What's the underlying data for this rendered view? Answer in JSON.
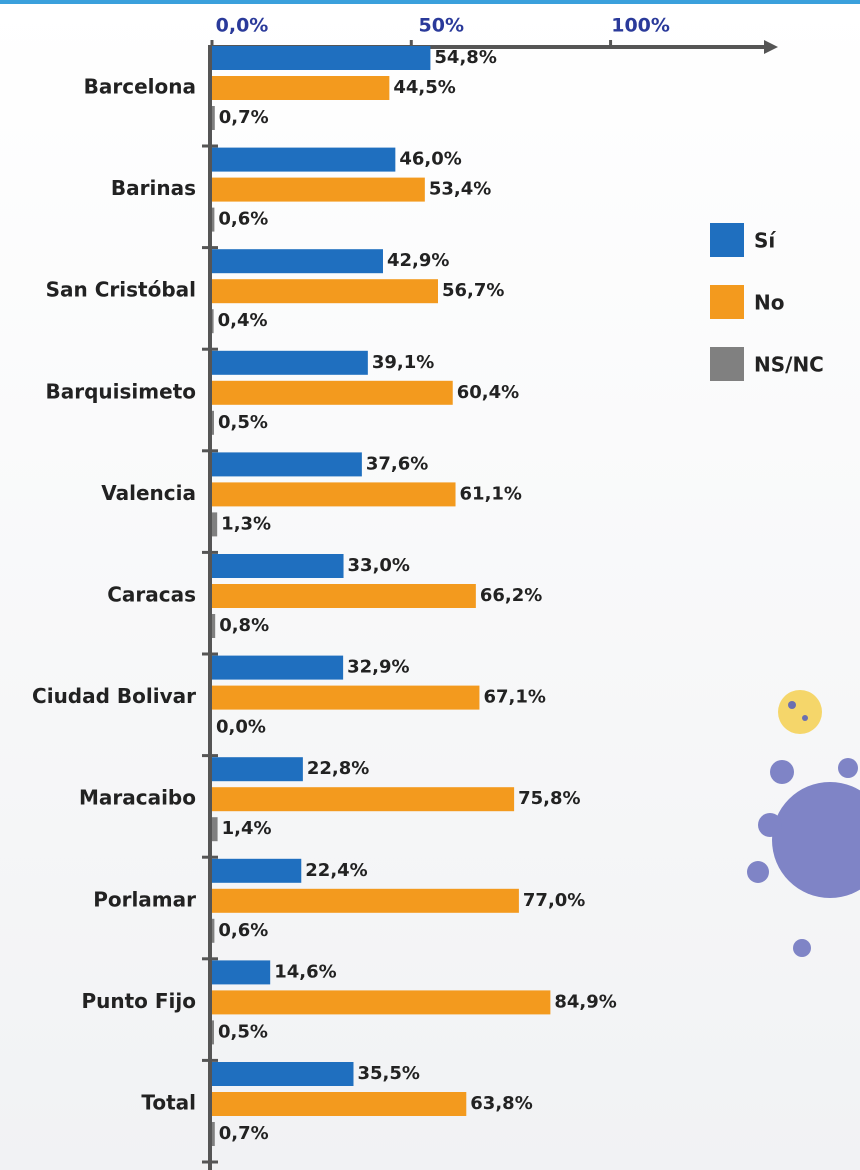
{
  "chart_data": {
    "type": "barh",
    "categories": [
      "Barcelona",
      "Barinas",
      "San Cristóbal",
      "Barquisimeto",
      "Valencia",
      "Caracas",
      "Ciudad Bolivar",
      "Maracaibo",
      "Porlamar",
      "Punto Fijo",
      "Total"
    ],
    "series": [
      {
        "name": "Sí",
        "color": "#1f6fbf",
        "values": [
          54.8,
          46.0,
          42.9,
          39.1,
          37.6,
          33.0,
          32.9,
          22.8,
          22.4,
          14.6,
          35.5
        ],
        "value_labels": [
          "54,8%",
          "46,0%",
          "42,9%",
          "39,1%",
          "37,6%",
          "33,0%",
          "32,9%",
          "22,8%",
          "22,4%",
          "14,6%",
          "35,5%"
        ]
      },
      {
        "name": "No",
        "color": "#f39a1e",
        "values": [
          44.5,
          53.4,
          56.7,
          60.4,
          61.1,
          66.2,
          67.1,
          75.8,
          77.0,
          84.9,
          63.8
        ],
        "value_labels": [
          "44,5%",
          "53,4%",
          "56,7%",
          "60,4%",
          "61,1%",
          "66,2%",
          "67,1%",
          "75,8%",
          "77,0%",
          "84,9%",
          "63,8%"
        ]
      },
      {
        "name": "NS/NC",
        "color": "#808080",
        "values": [
          0.7,
          0.6,
          0.4,
          0.5,
          1.3,
          0.8,
          0.0,
          1.4,
          0.6,
          0.5,
          0.7
        ],
        "value_labels": [
          "0,7%",
          "0,6%",
          "0,4%",
          "0,5%",
          "1,3%",
          "0,8%",
          "0,0%",
          "1,4%",
          "0,6%",
          "0,5%",
          "0,7%"
        ]
      }
    ],
    "xlim": [
      0,
      140
    ],
    "xticks": [
      {
        "value": 0,
        "label": "0,0%"
      },
      {
        "value": 50,
        "label": "50%"
      },
      {
        "value": 100,
        "label": "100%"
      }
    ],
    "legend": "right"
  }
}
